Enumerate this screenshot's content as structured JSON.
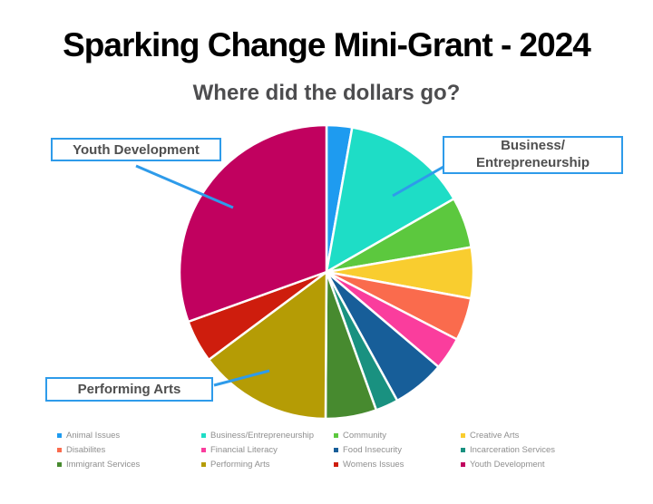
{
  "header": {
    "title": "Sparking Change Mini-Grant - 2024",
    "subtitle": "Where did the dollars go?",
    "title_color": "#000000",
    "subtitle_color": "#4D4D4F"
  },
  "callouts": {
    "youth": {
      "label": "Youth Development"
    },
    "business": {
      "line1": "Business/",
      "line2": "Entrepreneurship"
    },
    "performing": {
      "label": "Performing Arts"
    },
    "accent_color": "#2E9BEA",
    "text_color": "#4F4F4F"
  },
  "legend_text_color": "#8F8F8F",
  "chart_data": {
    "type": "pie",
    "title": "Sparking Change Mini-Grant - 2024",
    "subtitle": "Where did the dollars go?",
    "values_are": "estimated percent of dollars",
    "start_angle_deg": 0,
    "direction": "clockwise",
    "legend_position": "bottom",
    "slices": [
      {
        "label": "Animal Issues",
        "value": 2.8,
        "color": "#1E9BF0"
      },
      {
        "label": "Business/Entrepreneurship",
        "value": 13.9,
        "color": "#1EDDC6"
      },
      {
        "label": "Community",
        "value": 5.6,
        "color": "#5CC83E"
      },
      {
        "label": "Creative Arts",
        "value": 5.6,
        "color": "#F9CD2F"
      },
      {
        "label": "Disabilites",
        "value": 4.7,
        "color": "#FA6B4D"
      },
      {
        "label": "Financial Literacy",
        "value": 3.6,
        "color": "#FA3D9D"
      },
      {
        "label": "Food Insecurity",
        "value": 5.8,
        "color": "#175E99"
      },
      {
        "label": "Incarceration Services",
        "value": 2.5,
        "color": "#199180"
      },
      {
        "label": "Immigrant Services",
        "value": 5.6,
        "color": "#478A2F"
      },
      {
        "label": "Performing Arts",
        "value": 14.7,
        "color": "#B59C05"
      },
      {
        "label": "Womens Issues",
        "value": 4.7,
        "color": "#CE1D0D"
      },
      {
        "label": "Youth Development",
        "value": 30.5,
        "color": "#C1015F"
      }
    ]
  }
}
